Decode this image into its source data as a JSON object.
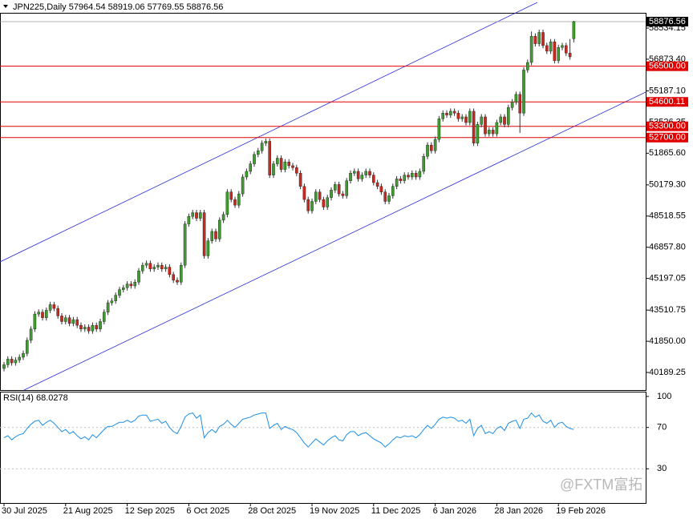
{
  "chart_data": [
    {
      "type": "candlestick",
      "title": "JPN225,Daily  57964.54 58919.06 57769.55 58876.56",
      "up_color": "#3f9a2f",
      "down_color": "#c8281e",
      "wick_color": "#333333",
      "ylim": [
        39251,
        59345
      ],
      "yticks": [
        58534.15,
        {
          "value": 56873.4,
          "label": "56873.40"
        },
        {
          "value": 55187.1,
          "label": "55187.10"
        },
        53526.35,
        {
          "value": 51865.6,
          "label": "51865.60"
        },
        {
          "value": 50179.3,
          "label": "50179.30"
        },
        48518.55,
        {
          "value": 46857.8,
          "label": "46857.80"
        },
        45197.05,
        43510.75,
        {
          "value": 41850,
          "label": "41850.00"
        },
        40189.25
      ],
      "levels": [
        {
          "value": 56500,
          "label": "56500.00"
        },
        {
          "value": 54600.11,
          "label": "54600.11"
        },
        {
          "value": 53300,
          "label": "53300.00"
        },
        {
          "value": 52700,
          "label": "52700.00"
        }
      ],
      "level_color": "#e00000",
      "price_marker": {
        "value": 58876.56,
        "label": "58876.56"
      },
      "watermark": "@FXTM富拓",
      "categories": [
        "30 Jul 2025",
        null,
        null,
        null,
        null,
        null,
        null,
        null,
        null,
        null,
        null,
        null,
        null,
        null,
        null,
        null,
        "21 Aug 2025",
        null,
        null,
        null,
        null,
        null,
        null,
        null,
        null,
        null,
        null,
        null,
        null,
        null,
        null,
        null,
        "12 Sep 2025",
        null,
        null,
        null,
        null,
        null,
        null,
        null,
        null,
        null,
        null,
        null,
        null,
        null,
        null,
        null,
        "6 Oct 2025",
        null,
        null,
        null,
        null,
        null,
        null,
        null,
        null,
        null,
        null,
        null,
        null,
        null,
        null,
        null,
        "28 Oct 2025",
        null,
        null,
        null,
        null,
        null,
        null,
        null,
        null,
        null,
        null,
        null,
        null,
        null,
        null,
        null,
        "19 Nov 2025",
        null,
        null,
        null,
        null,
        null,
        null,
        null,
        null,
        null,
        null,
        null,
        null,
        null,
        null,
        null,
        "11 Dec 2025",
        null,
        null,
        null,
        null,
        null,
        null,
        null,
        null,
        null,
        null,
        null,
        null,
        null,
        null,
        null,
        "6 Jan 2026",
        null,
        null,
        null,
        null,
        null,
        null,
        null,
        null,
        null,
        null,
        null,
        null,
        null,
        null,
        null,
        "28 Jan 2026",
        null,
        null,
        null,
        null,
        null,
        null,
        null,
        null,
        null,
        null,
        null,
        null,
        null,
        null,
        null,
        "19 Feb 2026",
        null,
        null,
        null,
        null
      ],
      "ohlc": [
        [
          40400,
          40750,
          40250,
          40600
        ],
        [
          40600,
          41050,
          40450,
          40900
        ],
        [
          40900,
          41050,
          40550,
          40700
        ],
        [
          40700,
          41000,
          40550,
          40850
        ],
        [
          40850,
          41150,
          40700,
          41000
        ],
        [
          41000,
          41350,
          40850,
          41200
        ],
        [
          41200,
          42050,
          41050,
          41900
        ],
        [
          41900,
          42650,
          41750,
          42500
        ],
        [
          42500,
          43450,
          42350,
          43300
        ],
        [
          43300,
          43550,
          43150,
          43400
        ],
        [
          43400,
          43550,
          42950,
          43100
        ],
        [
          43100,
          43650,
          42950,
          43500
        ],
        [
          43500,
          43950,
          43350,
          43800
        ],
        [
          43800,
          43950,
          43450,
          43600
        ],
        [
          43600,
          43750,
          43050,
          43200
        ],
        [
          43200,
          43350,
          42750,
          42900
        ],
        [
          42900,
          43250,
          42750,
          43100
        ],
        [
          43100,
          43250,
          42650,
          42800
        ],
        [
          42800,
          43150,
          42650,
          43000
        ],
        [
          43000,
          43150,
          42550,
          42700
        ],
        [
          42700,
          42850,
          42350,
          42500
        ],
        [
          42500,
          42750,
          42350,
          42600
        ],
        [
          42600,
          42750,
          42250,
          42400
        ],
        [
          42400,
          42850,
          42250,
          42700
        ],
        [
          42700,
          42850,
          42350,
          42500
        ],
        [
          42500,
          43050,
          42350,
          42900
        ],
        [
          42900,
          43550,
          42750,
          43400
        ],
        [
          43400,
          44050,
          43250,
          43900
        ],
        [
          43900,
          44150,
          43750,
          44000
        ],
        [
          44000,
          44450,
          43850,
          44300
        ],
        [
          44300,
          44750,
          44150,
          44600
        ],
        [
          44600,
          44850,
          44450,
          44700
        ],
        [
          44700,
          45050,
          44550,
          44900
        ],
        [
          44900,
          45050,
          44650,
          44800
        ],
        [
          44800,
          45150,
          44650,
          45000
        ],
        [
          45000,
          45750,
          44850,
          45600
        ],
        [
          45600,
          46050,
          45450,
          45900
        ],
        [
          45900,
          46150,
          45750,
          46000
        ],
        [
          46000,
          46150,
          45550,
          45700
        ],
        [
          45700,
          45950,
          45550,
          45800
        ],
        [
          45800,
          46050,
          45650,
          45900
        ],
        [
          45900,
          46050,
          45550,
          45700
        ],
        [
          45700,
          45950,
          45550,
          45800
        ],
        [
          45800,
          45950,
          45250,
          45400
        ],
        [
          45400,
          45550,
          44950,
          45100
        ],
        [
          45100,
          45250,
          44850,
          45000
        ],
        [
          45000,
          46050,
          44850,
          45900
        ],
        [
          45900,
          48250,
          45750,
          48100
        ],
        [
          48100,
          48650,
          47950,
          48500
        ],
        [
          48500,
          48850,
          48350,
          48700
        ],
        [
          48700,
          48850,
          48250,
          48400
        ],
        [
          48400,
          48850,
          48250,
          48700
        ],
        [
          48700,
          48850,
          46250,
          46400
        ],
        [
          46400,
          47350,
          46250,
          47200
        ],
        [
          47200,
          47850,
          47050,
          47700
        ],
        [
          47700,
          47850,
          47150,
          47300
        ],
        [
          47300,
          48450,
          47150,
          48300
        ],
        [
          48300,
          48750,
          48150,
          48600
        ],
        [
          48600,
          49950,
          48450,
          49800
        ],
        [
          49800,
          49950,
          49250,
          49400
        ],
        [
          49400,
          49550,
          48950,
          49100
        ],
        [
          49100,
          49850,
          48950,
          49700
        ],
        [
          49700,
          50750,
          49550,
          50600
        ],
        [
          50600,
          51050,
          50450,
          50900
        ],
        [
          50900,
          51450,
          50750,
          51300
        ],
        [
          51300,
          51950,
          51150,
          51800
        ],
        [
          51800,
          52150,
          51650,
          52000
        ],
        [
          52000,
          52550,
          51850,
          52400
        ],
        [
          52400,
          52650,
          52250,
          52500
        ],
        [
          52500,
          52650,
          50550,
          50700
        ],
        [
          50700,
          51450,
          50550,
          51300
        ],
        [
          51300,
          51750,
          51150,
          51600
        ],
        [
          51600,
          51750,
          50850,
          51000
        ],
        [
          51000,
          51550,
          50850,
          51400
        ],
        [
          51400,
          51550,
          51050,
          51200
        ],
        [
          51200,
          51350,
          50950,
          51100
        ],
        [
          51100,
          51250,
          50650,
          50800
        ],
        [
          50800,
          50950,
          49950,
          50100
        ],
        [
          50100,
          50250,
          49250,
          49400
        ],
        [
          49400,
          49550,
          48650,
          48800
        ],
        [
          48800,
          49450,
          48650,
          49300
        ],
        [
          49300,
          49950,
          49150,
          49800
        ],
        [
          49800,
          49950,
          49250,
          49400
        ],
        [
          49400,
          49550,
          48850,
          49000
        ],
        [
          49000,
          49650,
          48850,
          49500
        ],
        [
          49500,
          50050,
          49350,
          49900
        ],
        [
          49900,
          50350,
          49750,
          50200
        ],
        [
          50200,
          50350,
          49550,
          49700
        ],
        [
          49700,
          49850,
          49450,
          49600
        ],
        [
          49600,
          50550,
          49450,
          50400
        ],
        [
          50400,
          50950,
          50250,
          50800
        ],
        [
          50800,
          51050,
          50650,
          50900
        ],
        [
          50900,
          51050,
          50350,
          50500
        ],
        [
          50500,
          50850,
          50350,
          50700
        ],
        [
          50700,
          51050,
          50550,
          50900
        ],
        [
          50900,
          51050,
          50550,
          50700
        ],
        [
          50700,
          50850,
          50150,
          50300
        ],
        [
          50300,
          50450,
          49950,
          50100
        ],
        [
          50100,
          50250,
          49650,
          49800
        ],
        [
          49800,
          49950,
          49150,
          49300
        ],
        [
          49300,
          49750,
          49150,
          49600
        ],
        [
          49600,
          50250,
          49450,
          50100
        ],
        [
          50100,
          50650,
          49950,
          50500
        ],
        [
          50500,
          50650,
          50250,
          50400
        ],
        [
          50400,
          50850,
          50250,
          50700
        ],
        [
          50700,
          50850,
          50450,
          50600
        ],
        [
          50600,
          50950,
          50450,
          50800
        ],
        [
          50800,
          50950,
          50450,
          50600
        ],
        [
          50600,
          51050,
          50450,
          50900
        ],
        [
          50900,
          51850,
          50750,
          51700
        ],
        [
          51700,
          52450,
          51550,
          52300
        ],
        [
          52300,
          52450,
          51850,
          52000
        ],
        [
          52000,
          52750,
          51850,
          52600
        ],
        [
          52600,
          53850,
          52450,
          53700
        ],
        [
          53700,
          54150,
          53550,
          54000
        ],
        [
          54000,
          54150,
          53750,
          53900
        ],
        [
          53900,
          54250,
          53750,
          54100
        ],
        [
          54100,
          54250,
          53850,
          54000
        ],
        [
          54000,
          54150,
          53550,
          53700
        ],
        [
          53700,
          53950,
          53550,
          53800
        ],
        [
          53800,
          53950,
          53350,
          53500
        ],
        [
          53500,
          54250,
          53350,
          54100
        ],
        [
          54100,
          54250,
          52250,
          52400
        ],
        [
          52400,
          53550,
          52250,
          53400
        ],
        [
          53400,
          53950,
          53250,
          53800
        ],
        [
          53800,
          53950,
          52750,
          52900
        ],
        [
          52900,
          53250,
          52750,
          53100
        ],
        [
          53100,
          53250,
          52750,
          52900
        ],
        [
          52900,
          53650,
          52750,
          53500
        ],
        [
          53500,
          53950,
          53350,
          53800
        ],
        [
          53800,
          53950,
          53250,
          53400
        ],
        [
          53400,
          54450,
          53250,
          54300
        ],
        [
          54300,
          54750,
          54150,
          54600
        ],
        [
          54600,
          55150,
          54450,
          55000
        ],
        [
          55000,
          55150,
          52950,
          54000
        ],
        [
          54000,
          56450,
          53850,
          56300
        ],
        [
          56300,
          56850,
          56150,
          56700
        ],
        [
          56700,
          58350,
          56550,
          58100
        ],
        [
          58100,
          58250,
          57550,
          57700
        ],
        [
          57700,
          58450,
          57550,
          58300
        ],
        [
          58300,
          58450,
          57450,
          57600
        ],
        [
          57600,
          57750,
          57150,
          57300
        ],
        [
          57300,
          57950,
          57150,
          57800
        ],
        [
          57800,
          57950,
          56650,
          56800
        ],
        [
          56800,
          57650,
          56650,
          57500
        ],
        [
          57500,
          57750,
          57350,
          57600
        ],
        [
          57600,
          57750,
          57050,
          57200
        ],
        [
          57200,
          57950,
          56850,
          57000
        ],
        [
          57964.54,
          58919.06,
          57769.55,
          58876.56
        ]
      ]
    },
    {
      "type": "line",
      "title": "RSI(14) 68.0278",
      "color": "#1e8fe6",
      "ylim": [
        0,
        100
      ],
      "yticks": [
        100,
        70,
        30
      ],
      "levels": [
        70,
        30
      ],
      "values": [
        60,
        62,
        58,
        61,
        63,
        64,
        69,
        73,
        76,
        77,
        72,
        75,
        77,
        74,
        70,
        66,
        68,
        64,
        66,
        62,
        59,
        61,
        58,
        63,
        60,
        64,
        68,
        71,
        71,
        73,
        75,
        75,
        77,
        75,
        77,
        81,
        82,
        82,
        76,
        77,
        78,
        74,
        76,
        70,
        66,
        64,
        71,
        80,
        83,
        84,
        79,
        82,
        60,
        65,
        68,
        65,
        71,
        73,
        77,
        73,
        70,
        74,
        78,
        79,
        80,
        82,
        83,
        84,
        84,
        69,
        72,
        74,
        68,
        71,
        69,
        68,
        65,
        60,
        55,
        51,
        55,
        59,
        56,
        53,
        57,
        60,
        62,
        58,
        57,
        63,
        66,
        66,
        62,
        64,
        65,
        62,
        59,
        57,
        55,
        51,
        54,
        58,
        61,
        60,
        62,
        61,
        62,
        60,
        63,
        68,
        72,
        69,
        73,
        78,
        80,
        79,
        80,
        79,
        76,
        77,
        74,
        78,
        62,
        69,
        72,
        64,
        66,
        64,
        69,
        71,
        67,
        74,
        76,
        77,
        69,
        78,
        79,
        84,
        80,
        82,
        76,
        74,
        77,
        70,
        74,
        75,
        71,
        69,
        68.0278
      ]
    }
  ]
}
